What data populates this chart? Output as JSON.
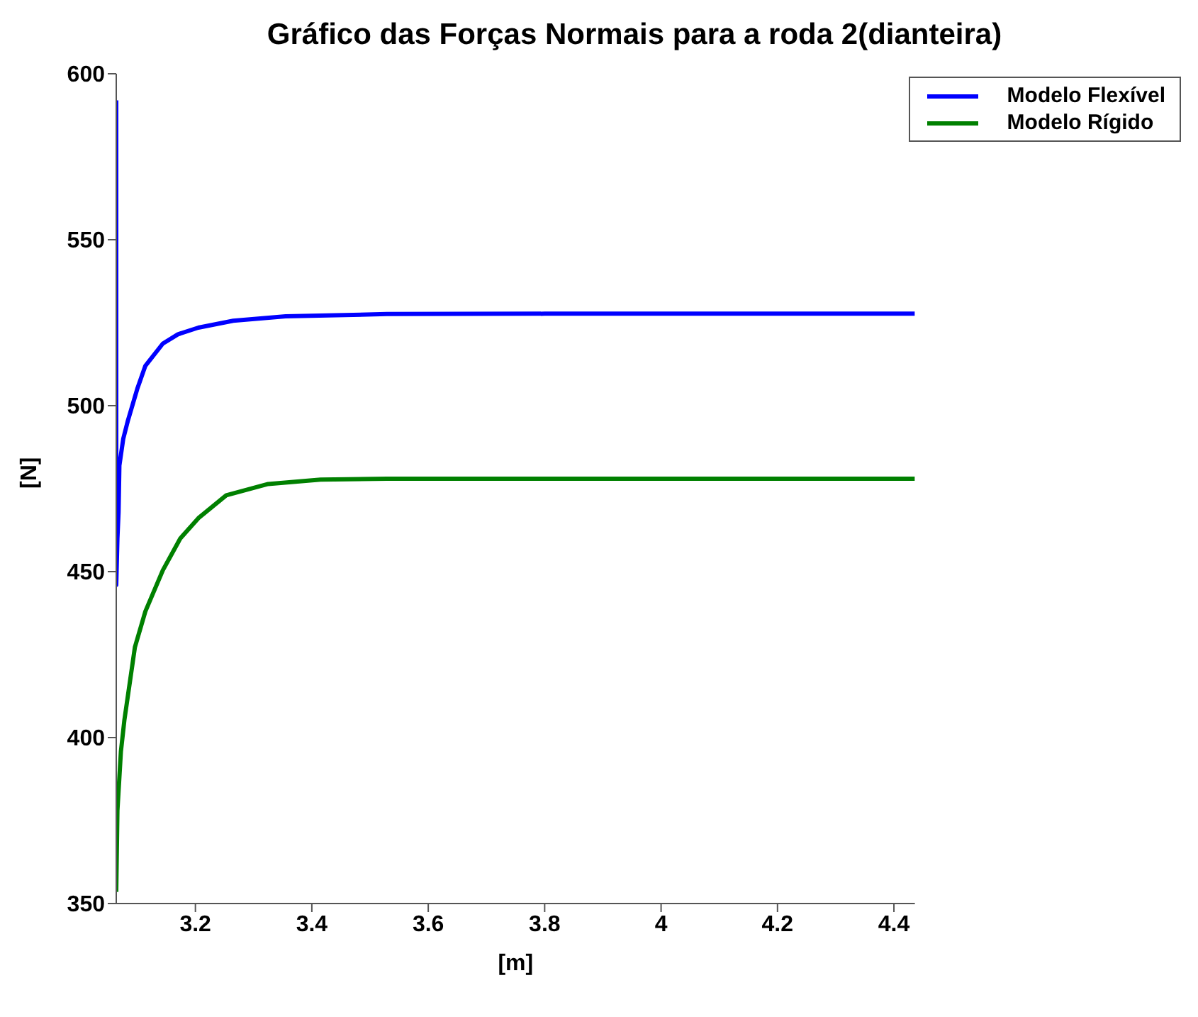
{
  "chart_data": {
    "type": "line",
    "title": "Gráfico das Forças Normais para a roda 2(dianteira)",
    "xlabel": "[m]",
    "ylabel": "[N]",
    "xlim": [
      3.064,
      4.436
    ],
    "ylim": [
      350,
      600
    ],
    "xticks": [
      3.2,
      3.4,
      3.6,
      3.8,
      4,
      4.2,
      4.4
    ],
    "yticks": [
      350,
      400,
      450,
      500,
      550,
      600
    ],
    "grid": false,
    "legend": "top right",
    "marker": "none",
    "line_style": "solid",
    "series": [
      {
        "name": "Modelo Flexível",
        "color": "#0000ff",
        "x": [
          3.064,
          3.064,
          3.066,
          3.068,
          3.0694,
          3.076,
          3.084,
          3.1,
          3.114,
          3.144,
          3.17,
          3.205,
          3.265,
          3.355,
          3.529,
          3.8,
          4.436
        ],
        "values": [
          592,
          446,
          460,
          468,
          482,
          490,
          495.5,
          505,
          512,
          518.7,
          521.5,
          523.5,
          525.6,
          526.9,
          527.6,
          527.7,
          527.7
        ]
      },
      {
        "name": "Modelo Rígido",
        "color": "#008000",
        "x": [
          3.064,
          3.066,
          3.072,
          3.078,
          3.096,
          3.114,
          3.144,
          3.174,
          3.205,
          3.253,
          3.325,
          3.415,
          3.529,
          3.8,
          4.436
        ],
        "values": [
          353.5,
          378,
          395.8,
          405.3,
          427.2,
          438,
          450.4,
          460,
          466.1,
          473,
          476.4,
          477.7,
          478,
          478,
          478
        ]
      }
    ]
  }
}
